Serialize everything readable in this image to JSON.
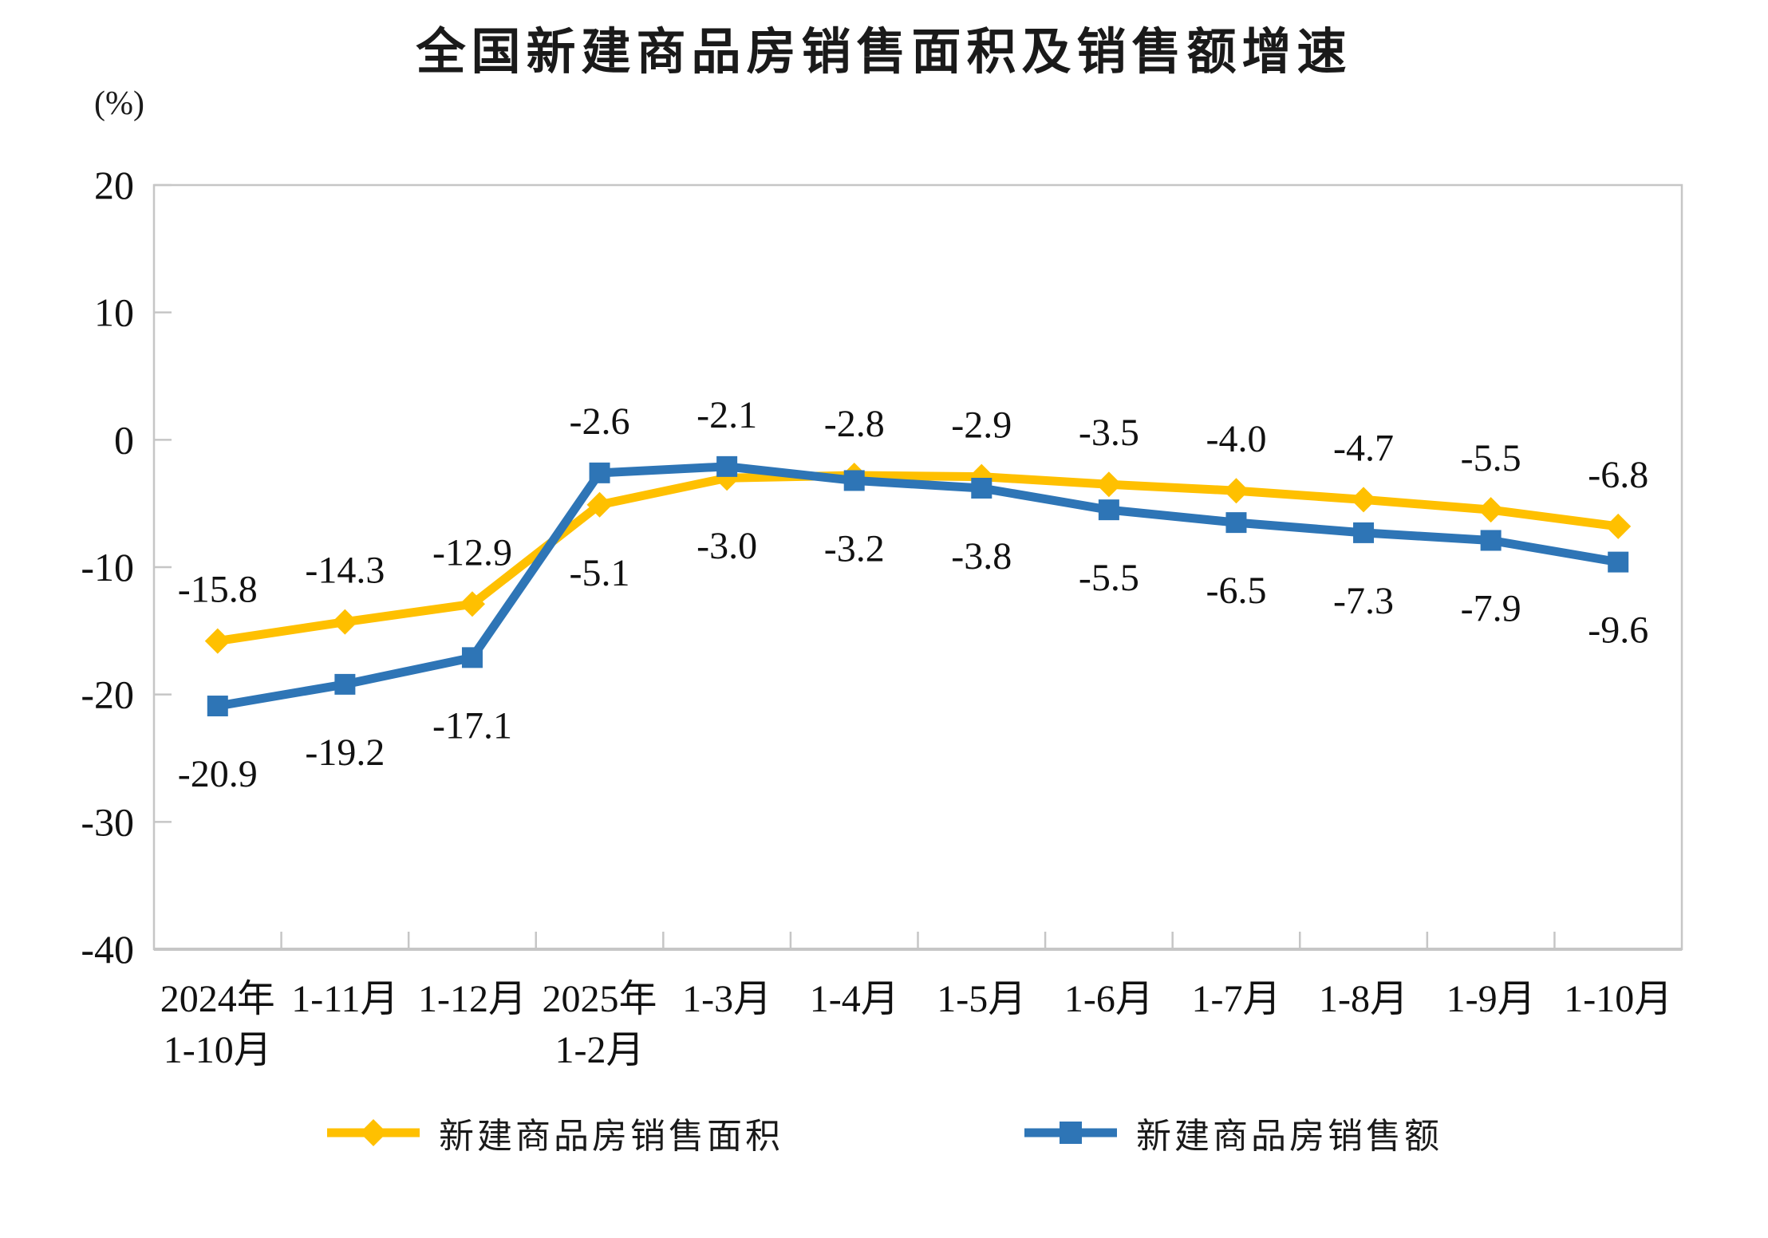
{
  "title": "全国新建商品房销售面积及销售额增速",
  "unit_label": "(%)",
  "chart_data": {
    "type": "line",
    "categories": [
      [
        "2024年",
        "1-10月"
      ],
      [
        "1-11月"
      ],
      [
        "1-12月"
      ],
      [
        "2025年",
        "1-2月"
      ],
      [
        "1-3月"
      ],
      [
        "1-4月"
      ],
      [
        "1-5月"
      ],
      [
        "1-6月"
      ],
      [
        "1-7月"
      ],
      [
        "1-8月"
      ],
      [
        "1-9月"
      ],
      [
        "1-10月"
      ]
    ],
    "series": [
      {
        "name": "新建商品房销售面积",
        "marker": "diamond",
        "color": "#FFC000",
        "values": [
          -15.8,
          -14.3,
          -12.9,
          -5.1,
          -3.0,
          -2.8,
          -2.9,
          -3.5,
          -4.0,
          -4.7,
          -5.5,
          -6.8
        ]
      },
      {
        "name": "新建商品房销售额",
        "marker": "square",
        "color": "#2E75B6",
        "values": [
          -20.9,
          -19.2,
          -17.1,
          -2.6,
          -2.1,
          -3.2,
          -3.8,
          -5.5,
          -6.5,
          -7.3,
          -7.9,
          -9.6
        ]
      }
    ],
    "ylabel": "(%)",
    "ylim": [
      -40,
      20
    ],
    "yticks": [
      20,
      10,
      0,
      -10,
      -20,
      -30,
      -40
    ],
    "grid": false,
    "legend_position": "bottom",
    "axis_color": "#C6C6C6",
    "label_color": "#111111"
  }
}
